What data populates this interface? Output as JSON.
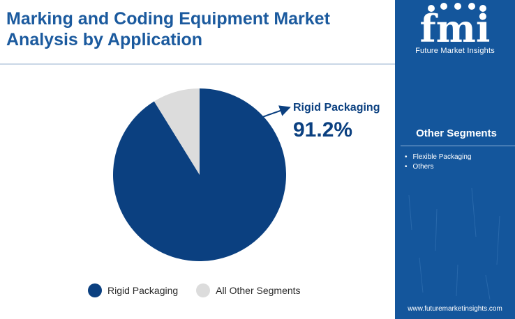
{
  "header": {
    "title_line1": "Marking and Coding Equipment Market",
    "title_line2": "Analysis by Application"
  },
  "colors": {
    "primary": "#0b4080",
    "secondary": "#dcdcdc",
    "sidebar": "#14569c",
    "title": "#1b5a9e"
  },
  "chart_data": {
    "type": "pie",
    "categories": [
      "Rigid Packaging",
      "All Other Segments"
    ],
    "values": [
      91.2,
      8.8
    ],
    "title": "",
    "callout": {
      "label": "Rigid Packaging",
      "value_text": "91.2%"
    },
    "legend": {
      "placement": "bottom"
    }
  },
  "sidebar": {
    "logo_text": "fmi",
    "logo_caption": "Future Market Insights",
    "segments_title": "Other Segments",
    "segments": [
      "Flexible Packaging",
      "Others"
    ],
    "footer_url": "www.futuremarketinsights.com"
  }
}
